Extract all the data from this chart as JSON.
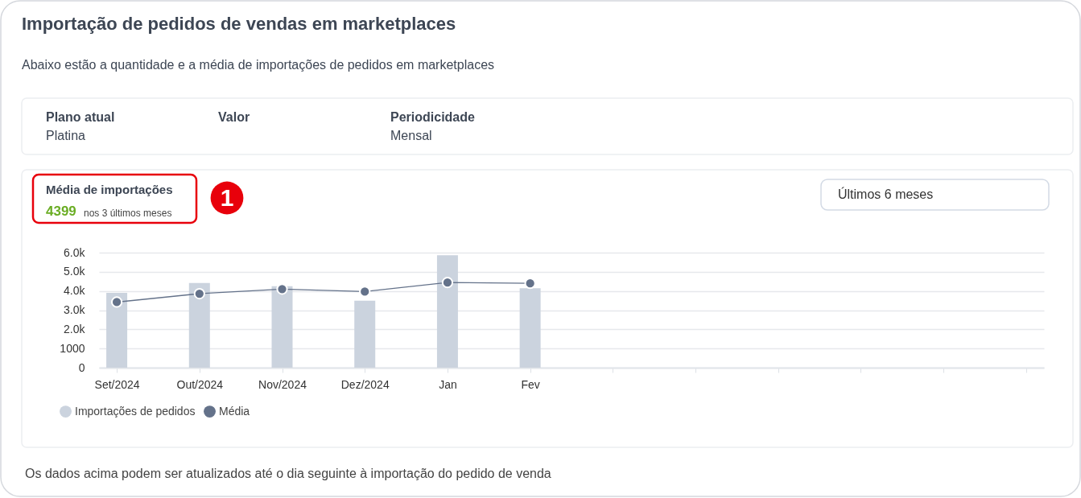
{
  "chart_data": {
    "type": "bar",
    "title": "Importação de pedidos de vendas em marketplaces",
    "subtitle": "Abaixo estão a quantidade e a média de importações de pedidos em marketplaces",
    "categories": [
      "Set/2024",
      "Out/2024",
      "Nov/2024",
      "Dez/2024",
      "Jan",
      "Fev",
      null,
      null,
      null,
      null,
      null,
      null
    ],
    "series": [
      {
        "name": "Importações de pedidos",
        "color": "#cbd3de",
        "values": [
          3900,
          4420,
          4250,
          3490,
          5860,
          4140,
          null,
          null,
          null,
          null,
          null,
          null
        ]
      },
      {
        "name": "Média",
        "type": "line",
        "color": "#64728a",
        "values": [
          3420,
          3860,
          4100,
          3970,
          4440,
          4400,
          null,
          null,
          null,
          null,
          null,
          null
        ]
      }
    ],
    "ylim": [
      0,
      6000
    ],
    "yticks": [
      0,
      1000,
      {
        "value": 2000,
        "label": "2.0k"
      },
      {
        "value": 3000,
        "label": "3.0k"
      },
      {
        "value": 4000,
        "label": "4.0k"
      },
      {
        "value": 5000,
        "label": "5.0k"
      },
      {
        "value": 6000,
        "label": "6.0k"
      }
    ],
    "grid": "y",
    "legend": "bottom left",
    "marker": "circle",
    "line_style": "solid",
    "annotations": [
      "Plano atual",
      "Platina",
      "Valor",
      "Periodicidade",
      "Mensal",
      "Média de importações",
      "4399",
      "nos 3 últimos meses",
      "1",
      "Últimos 6 meses",
      "Os dados acima podem ser atualizados até o dia seguinte à importação do pedido de venda"
    ]
  }
}
